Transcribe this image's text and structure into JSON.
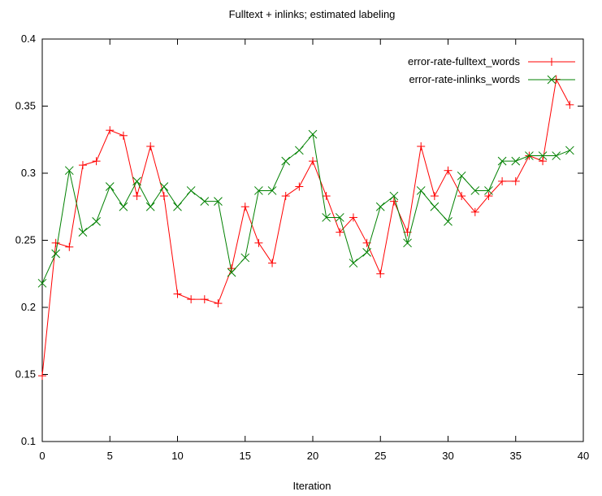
{
  "chart_data": {
    "type": "line",
    "title": "Fulltext + inlinks; estimated labeling",
    "xlabel": "Iteration",
    "ylabel": "",
    "xlim": [
      0,
      40
    ],
    "ylim": [
      0.1,
      0.4
    ],
    "xticks": [
      "0",
      "5",
      "10",
      "15",
      "20",
      "25",
      "30",
      "35",
      "40"
    ],
    "yticks": [
      "0.1",
      "0.15",
      "0.2",
      "0.25",
      "0.3",
      "0.35",
      "0.4"
    ],
    "legend_position": "top-right",
    "grid": false,
    "x": [
      0,
      1,
      2,
      3,
      4,
      5,
      6,
      7,
      8,
      9,
      10,
      11,
      12,
      13,
      14,
      15,
      16,
      17,
      18,
      19,
      20,
      21,
      22,
      23,
      24,
      25,
      26,
      27,
      28,
      29,
      30,
      31,
      32,
      33,
      34,
      35,
      36,
      37,
      38,
      39
    ],
    "series": [
      {
        "name": "error-rate-fulltext_words",
        "color": "#ff0000",
        "marker": "plus",
        "values": [
          0.149,
          0.248,
          0.245,
          0.306,
          0.309,
          0.332,
          0.328,
          0.283,
          0.32,
          0.283,
          0.21,
          0.206,
          0.206,
          0.203,
          0.229,
          0.275,
          0.248,
          0.233,
          0.283,
          0.29,
          0.309,
          0.283,
          0.256,
          0.267,
          0.248,
          0.225,
          0.279,
          0.256,
          0.32,
          0.283,
          0.302,
          0.283,
          0.271,
          0.283,
          0.294,
          0.294,
          0.313,
          0.309,
          0.37,
          0.351
        ]
      },
      {
        "name": "error-rate-inlinks_words",
        "color": "#008000",
        "marker": "cross",
        "values": [
          0.218,
          0.24,
          0.302,
          0.256,
          0.264,
          0.29,
          0.275,
          0.294,
          0.275,
          0.29,
          0.275,
          0.287,
          0.279,
          0.279,
          0.226,
          0.237,
          0.287,
          0.287,
          0.309,
          0.317,
          0.329,
          0.267,
          0.267,
          0.233,
          0.241,
          0.275,
          0.283,
          0.248,
          0.287,
          0.275,
          0.264,
          0.298,
          0.287,
          0.287,
          0.309,
          0.309,
          0.313,
          0.313,
          0.313,
          0.317
        ]
      }
    ]
  }
}
